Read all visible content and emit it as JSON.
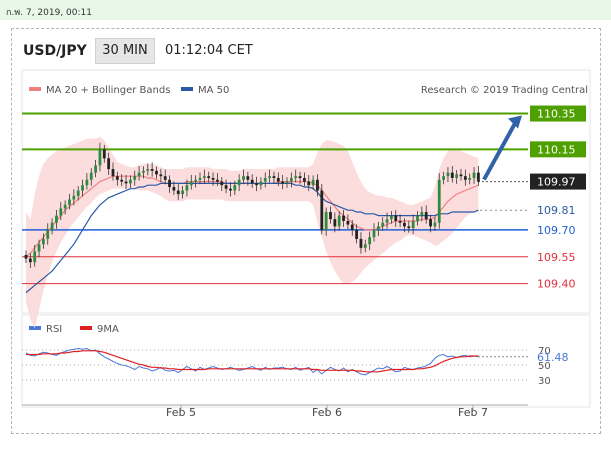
{
  "topbar": {
    "datetime": "ก.พ. 7, 2019, 00:11"
  },
  "header": {
    "pair": "USD/JPY",
    "timeframe": "30 MIN",
    "time": "01:12:04 CET"
  },
  "chart_data": [
    {
      "type": "line",
      "title": "USD/JPY",
      "legend": [
        {
          "name": "MA 20 + Bollinger Bands",
          "color": "#f08080"
        },
        {
          "name": "MA 50",
          "color": "#2a5aa5"
        }
      ],
      "attribution": "Research © 2019 Trading Central",
      "x_ticks": [
        "Feb 5",
        "Feb 6",
        "Feb 7"
      ],
      "y_range": [
        109.13,
        110.42
      ],
      "current_price": "109.97",
      "levels": [
        {
          "value": 110.35,
          "label": "110.35",
          "kind": "resistance",
          "color": "#4da000"
        },
        {
          "value": 110.15,
          "label": "110.15",
          "kind": "resistance",
          "color": "#4da000"
        },
        {
          "value": 109.97,
          "label": "109.97",
          "kind": "last",
          "color": "#222222"
        },
        {
          "value": 109.81,
          "label": "109.81",
          "kind": "pivot",
          "color": "#2a5aa5"
        },
        {
          "value": 109.7,
          "label": "109.70",
          "kind": "support",
          "color": "#1f5fd6"
        },
        {
          "value": 109.55,
          "label": "109.55",
          "kind": "support",
          "color": "#e0303a"
        },
        {
          "value": 109.4,
          "label": "109.40",
          "kind": "support",
          "color": "#e0303a"
        }
      ],
      "arrow": {
        "from_value": 109.97,
        "to_value": 110.35,
        "direction": "up"
      },
      "price_series": [
        109.54,
        109.52,
        109.58,
        109.62,
        109.65,
        109.7,
        109.74,
        109.78,
        109.82,
        109.84,
        109.87,
        109.89,
        109.92,
        109.95,
        109.98,
        110.02,
        110.06,
        110.15,
        110.1,
        110.04,
        110.0,
        109.98,
        109.97,
        109.96,
        109.98,
        110.0,
        110.02,
        110.03,
        110.04,
        110.03,
        110.01,
        110.0,
        109.98,
        109.94,
        109.92,
        109.9,
        109.92,
        109.95,
        109.97,
        109.98,
        109.99,
        110.0,
        109.99,
        109.98,
        109.97,
        109.95,
        109.93,
        109.92,
        109.95,
        109.98,
        110.0,
        109.98,
        109.96,
        109.95,
        109.97,
        109.99,
        110.0,
        109.99,
        109.97,
        109.96,
        109.97,
        109.99,
        110.0,
        109.99,
        109.97,
        109.95,
        109.98,
        109.92,
        109.7,
        109.8,
        109.76,
        109.72,
        109.78,
        109.75,
        109.73,
        109.7,
        109.65,
        109.6,
        109.62,
        109.66,
        109.7,
        109.72,
        109.74,
        109.76,
        109.78,
        109.75,
        109.74,
        109.72,
        109.71,
        109.75,
        109.78,
        109.8,
        109.76,
        109.72,
        109.74,
        109.98,
        110.0,
        110.02,
        109.99,
        110.01,
        110.0,
        109.98,
        109.99,
        110.02,
        109.97
      ],
      "ma20_series": [
        109.55,
        109.57,
        109.6,
        109.63,
        109.66,
        109.69,
        109.72,
        109.75,
        109.78,
        109.81,
        109.83,
        109.85,
        109.87,
        109.89,
        109.91,
        109.93,
        109.95,
        109.97,
        109.98,
        109.99,
        110.0,
        110.0,
        110.0,
        110.0,
        110.0,
        110.0,
        110.0,
        110.0,
        109.99,
        109.99,
        109.98,
        109.97,
        109.96,
        109.96,
        109.96,
        109.96,
        109.96,
        109.97,
        109.97,
        109.97,
        109.97,
        109.97,
        109.97,
        109.97,
        109.97,
        109.97,
        109.96,
        109.96,
        109.96,
        109.96,
        109.96,
        109.96,
        109.96,
        109.96,
        109.96,
        109.96,
        109.96,
        109.96,
        109.97,
        109.97,
        109.97,
        109.97,
        109.97,
        109.97,
        109.97,
        109.97,
        109.96,
        109.95,
        109.92,
        109.89,
        109.86,
        109.83,
        109.8,
        109.78,
        109.76,
        109.74,
        109.72,
        109.71,
        109.7,
        109.7,
        109.7,
        109.71,
        109.72,
        109.73,
        109.74,
        109.75,
        109.75,
        109.75,
        109.75,
        109.75,
        109.75,
        109.76,
        109.76,
        109.76,
        109.77,
        109.8,
        109.83,
        109.86,
        109.88,
        109.9,
        109.91,
        109.92,
        109.93,
        109.94,
        109.95
      ],
      "bb_upper_series": [
        109.8,
        109.76,
        109.9,
        110.0,
        110.07,
        110.1,
        110.12,
        110.14,
        110.15,
        110.16,
        110.17,
        110.18,
        110.19,
        110.2,
        110.21,
        110.21,
        110.21,
        110.22,
        110.2,
        110.16,
        110.12,
        110.08,
        110.07,
        110.06,
        110.05,
        110.05,
        110.06,
        110.07,
        110.07,
        110.07,
        110.06,
        110.05,
        110.04,
        110.04,
        110.04,
        110.04,
        110.04,
        110.05,
        110.05,
        110.05,
        110.05,
        110.05,
        110.05,
        110.04,
        110.04,
        110.04,
        110.04,
        110.03,
        110.03,
        110.03,
        110.04,
        110.04,
        110.04,
        110.04,
        110.04,
        110.04,
        110.04,
        110.04,
        110.05,
        110.05,
        110.05,
        110.05,
        110.05,
        110.05,
        110.05,
        110.05,
        110.07,
        110.13,
        110.18,
        110.2,
        110.2,
        110.19,
        110.18,
        110.17,
        110.14,
        110.08,
        110.02,
        109.97,
        109.93,
        109.91,
        109.9,
        109.89,
        109.89,
        109.88,
        109.88,
        109.87,
        109.86,
        109.85,
        109.84,
        109.84,
        109.85,
        109.86,
        109.87,
        109.88,
        109.94,
        110.04,
        110.1,
        110.14,
        110.15,
        110.15,
        110.14,
        110.13,
        110.12,
        110.11,
        110.1
      ],
      "bb_lower_series": [
        109.3,
        109.2,
        109.15,
        109.25,
        109.36,
        109.45,
        109.52,
        109.58,
        109.63,
        109.67,
        109.71,
        109.74,
        109.77,
        109.8,
        109.83,
        109.85,
        109.88,
        109.9,
        109.91,
        109.92,
        109.93,
        109.93,
        109.93,
        109.93,
        109.93,
        109.93,
        109.92,
        109.92,
        109.92,
        109.91,
        109.9,
        109.89,
        109.87,
        109.86,
        109.86,
        109.86,
        109.86,
        109.87,
        109.87,
        109.87,
        109.87,
        109.87,
        109.87,
        109.87,
        109.87,
        109.87,
        109.86,
        109.86,
        109.86,
        109.86,
        109.86,
        109.86,
        109.86,
        109.86,
        109.86,
        109.86,
        109.86,
        109.86,
        109.86,
        109.86,
        109.86,
        109.86,
        109.86,
        109.86,
        109.86,
        109.86,
        109.84,
        109.74,
        109.66,
        109.58,
        109.52,
        109.47,
        109.43,
        109.4,
        109.4,
        109.41,
        109.43,
        109.46,
        109.49,
        109.51,
        109.53,
        109.55,
        109.57,
        109.59,
        109.61,
        109.63,
        109.64,
        109.66,
        109.67,
        109.67,
        109.66,
        109.65,
        109.64,
        109.63,
        109.61,
        109.62,
        109.64,
        109.66,
        109.68,
        109.71,
        109.74,
        109.77,
        109.79,
        109.8,
        109.81
      ],
      "ma50_series": [
        109.35,
        109.37,
        109.39,
        109.41,
        109.43,
        109.45,
        109.47,
        109.5,
        109.53,
        109.56,
        109.59,
        109.62,
        109.66,
        109.7,
        109.74,
        109.78,
        109.81,
        109.84,
        109.86,
        109.88,
        109.89,
        109.9,
        109.91,
        109.92,
        109.93,
        109.93,
        109.94,
        109.94,
        109.95,
        109.95,
        109.95,
        109.96,
        109.96,
        109.96,
        109.96,
        109.96,
        109.96,
        109.96,
        109.96,
        109.96,
        109.96,
        109.96,
        109.96,
        109.96,
        109.96,
        109.96,
        109.96,
        109.96,
        109.96,
        109.96,
        109.96,
        109.96,
        109.96,
        109.96,
        109.96,
        109.96,
        109.96,
        109.96,
        109.96,
        109.96,
        109.96,
        109.96,
        109.95,
        109.95,
        109.94,
        109.94,
        109.93,
        109.91,
        109.88,
        109.86,
        109.85,
        109.84,
        109.83,
        109.82,
        109.81,
        109.81,
        109.8,
        109.8,
        109.79,
        109.79,
        109.79,
        109.78,
        109.78,
        109.78,
        109.78,
        109.78,
        109.78,
        109.78,
        109.78,
        109.78,
        109.78,
        109.78,
        109.78,
        109.78,
        109.78,
        109.79,
        109.79,
        109.79,
        109.8,
        109.8,
        109.8,
        109.8,
        109.8,
        109.8,
        109.81
      ]
    },
    {
      "type": "line",
      "legend": [
        {
          "name": "RSI",
          "color": "#4a78d8"
        },
        {
          "name": "9MA",
          "color": "#e02020"
        }
      ],
      "y_range": [
        20,
        80
      ],
      "y_ticks": [
        "70",
        "50",
        "30"
      ],
      "current_value": "61.48",
      "series": [
        {
          "name": "RSI",
          "values": [
            66,
            63,
            62,
            65,
            67,
            66,
            64,
            63,
            66,
            68,
            70,
            71,
            72,
            71,
            72,
            69,
            70,
            65,
            61,
            58,
            55,
            52,
            50,
            49,
            47,
            44,
            48,
            46,
            45,
            42,
            44,
            47,
            43,
            42,
            43,
            40,
            44,
            48,
            45,
            42,
            47,
            44,
            46,
            48,
            46,
            44,
            45,
            47,
            45,
            43,
            44,
            46,
            48,
            45,
            43,
            47,
            44,
            46,
            46,
            47,
            45,
            44,
            47,
            43,
            45,
            47,
            40,
            44,
            38,
            43,
            47,
            44,
            42,
            46,
            41,
            44,
            41,
            38,
            37,
            40,
            43,
            46,
            45,
            48,
            45,
            41,
            42,
            47,
            45,
            44,
            46,
            47,
            49,
            52,
            59,
            63,
            64,
            61,
            62,
            60,
            62,
            63,
            61,
            62,
            61
          ]
        },
        {
          "name": "9MA",
          "values": [
            64,
            64,
            64,
            64,
            65,
            65,
            65,
            65,
            66,
            66,
            67,
            68,
            68,
            69,
            69,
            69,
            69,
            68,
            67,
            65,
            63,
            61,
            59,
            57,
            55,
            53,
            51,
            50,
            48,
            47,
            47,
            46,
            46,
            45,
            45,
            44,
            44,
            44,
            44,
            44,
            44,
            44,
            45,
            45,
            45,
            45,
            45,
            45,
            45,
            45,
            45,
            45,
            45,
            45,
            45,
            45,
            45,
            45,
            45,
            45,
            45,
            45,
            45,
            45,
            45,
            45,
            44,
            44,
            43,
            43,
            43,
            43,
            43,
            43,
            43,
            43,
            42,
            42,
            41,
            41,
            41,
            41,
            42,
            43,
            44,
            44,
            44,
            44,
            44,
            44,
            45,
            45,
            46,
            47,
            49,
            52,
            55,
            57,
            59,
            60,
            61,
            61,
            62,
            62,
            62
          ]
        }
      ]
    }
  ]
}
